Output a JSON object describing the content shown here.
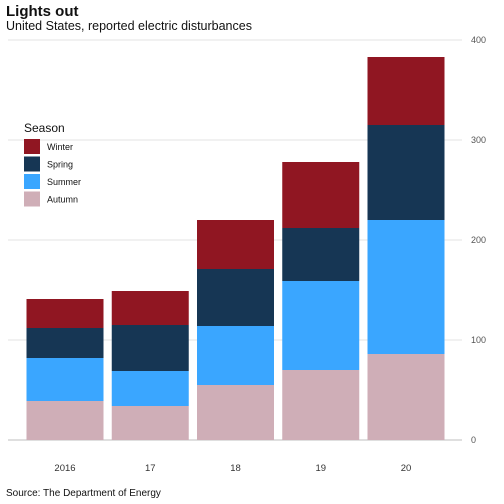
{
  "chart_data": {
    "type": "bar",
    "stacked": true,
    "title": "Lights out",
    "subtitle": "United States, reported electric disturbances",
    "source": "Source: The Department of Energy",
    "categories": [
      "2016",
      "17",
      "18",
      "19",
      "20"
    ],
    "series": [
      {
        "name": "Autumn",
        "color": "#cfaeb7",
        "values": [
          39,
          34,
          55,
          70,
          86
        ]
      },
      {
        "name": "Summer",
        "color": "#3aa6ff",
        "values": [
          43,
          35,
          59,
          89,
          134
        ]
      },
      {
        "name": "Spring",
        "color": "#163654",
        "values": [
          30,
          46,
          57,
          53,
          95
        ]
      },
      {
        "name": "Winter",
        "color": "#901622",
        "values": [
          29,
          34,
          49,
          66,
          68
        ]
      }
    ],
    "legend": {
      "title": "Season",
      "order": [
        "Winter",
        "Spring",
        "Summer",
        "Autumn"
      ],
      "position": "left"
    },
    "y_axis": {
      "position": "right",
      "ylim": [
        0,
        400
      ],
      "ticks": [
        "0",
        "100",
        "200",
        "300",
        "400"
      ],
      "grid": true
    }
  }
}
